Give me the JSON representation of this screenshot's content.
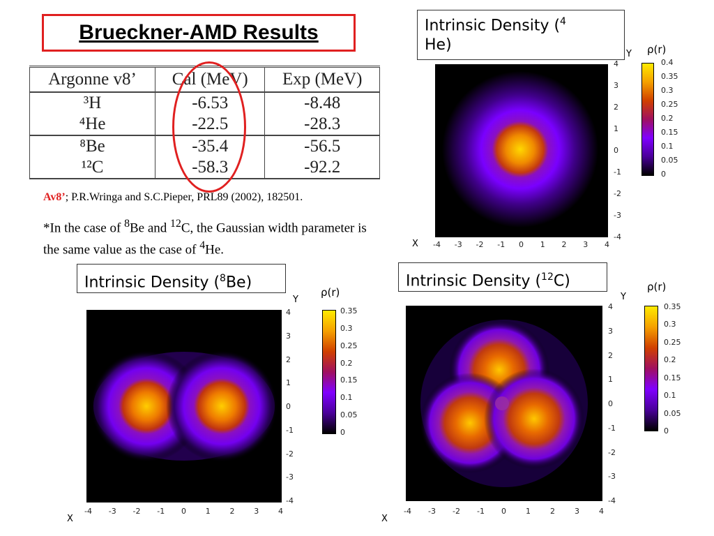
{
  "slide_title": "Brueckner-AMD Results",
  "table": {
    "headers": [
      "Argonne v8’",
      "Cal (MeV)",
      "Exp (MeV)"
    ],
    "rows": [
      {
        "nucleus": "³H",
        "cal": "-6.53",
        "exp": "-8.48"
      },
      {
        "nucleus": "⁴He",
        "cal": "-22.5",
        "exp": "-28.3"
      },
      {
        "nucleus": "⁸Be",
        "cal": "-35.4",
        "exp": "-56.5"
      },
      {
        "nucleus": "¹²C",
        "cal": "-58.3",
        "exp": "-92.2"
      }
    ]
  },
  "reference": {
    "label": "Av8’",
    "text": "; P.R.Wringa and S.C.Pieper, PRL89 (2002), 182501."
  },
  "note": {
    "prefix": "*In the case of ",
    "sup1": "8",
    "mid1": "Be and ",
    "sup2": "12",
    "mid2": "C, the Gaussian width parameter is the same value as the case of ",
    "sup3": "4",
    "suffix": "He."
  },
  "panels": [
    {
      "caption_main": "Intrinsic Density (",
      "caption_sup": "4",
      "caption_end": "He)",
      "x_label": "X",
      "y_label": "Y",
      "colorbar_label": "ρ(r)",
      "x_ticks": [
        "-4",
        "-3",
        "-2",
        "-1",
        "0",
        "1",
        "2",
        "3",
        "4"
      ],
      "y_ticks": [
        "4",
        "3",
        "2",
        "1",
        "0",
        "-1",
        "-2",
        "-3",
        "-4"
      ],
      "colorbar_ticks": [
        "0.4",
        "0.35",
        "0.3",
        "0.25",
        "0.2",
        "0.15",
        "0.1",
        "0.05",
        "0"
      ]
    },
    {
      "caption_main": "Intrinsic Density (",
      "caption_sup": "8",
      "caption_end": "Be)",
      "x_label": "X",
      "y_label": "Y",
      "colorbar_label": "ρ(r)",
      "x_ticks": [
        "-4",
        "-3",
        "-2",
        "-1",
        "0",
        "1",
        "2",
        "3",
        "4"
      ],
      "y_ticks": [
        "4",
        "3",
        "2",
        "1",
        "0",
        "-1",
        "-2",
        "-3",
        "-4"
      ],
      "colorbar_ticks": [
        "0.35",
        "0.3",
        "0.25",
        "0.2",
        "0.15",
        "0.1",
        "0.05",
        "0"
      ]
    },
    {
      "caption_main": "Intrinsic Density (",
      "caption_sup": "12",
      "caption_end": "C)",
      "x_label": "X",
      "y_label": "Y",
      "colorbar_label": "ρ(r)",
      "x_ticks": [
        "-4",
        "-3",
        "-2",
        "-1",
        "0",
        "1",
        "2",
        "3",
        "4"
      ],
      "y_ticks": [
        "4",
        "3",
        "2",
        "1",
        "0",
        "-1",
        "-2",
        "-3",
        "-4"
      ],
      "colorbar_ticks": [
        "0.35",
        "0.3",
        "0.25",
        "0.2",
        "0.15",
        "0.1",
        "0.05",
        "0"
      ]
    }
  ],
  "colors": {
    "accent_red": "#e02020"
  }
}
